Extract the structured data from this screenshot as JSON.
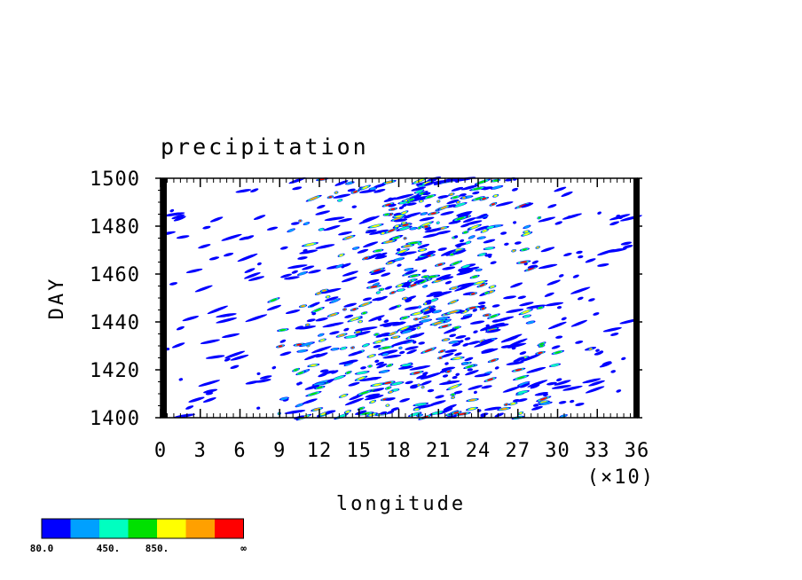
{
  "chart_data": {
    "type": "heatmap",
    "title": "precipitation",
    "xlabel": "longitude",
    "ylabel": "DAY",
    "x_multiplier_label": "(×10)",
    "xlim": [
      0,
      36
    ],
    "ylim": [
      1400,
      1500
    ],
    "x_ticks": [
      "0",
      "3",
      "6",
      "9",
      "12",
      "15",
      "18",
      "21",
      "24",
      "27",
      "30",
      "33",
      "36"
    ],
    "y_ticks": [
      "1400",
      "1420",
      "1440",
      "1460",
      "1480",
      "1500"
    ],
    "grid": false,
    "colorbar": {
      "placement": "bottom-left",
      "colors": [
        "#0000ff",
        "#00a0ff",
        "#00ffc0",
        "#00e000",
        "#ffff00",
        "#ffa000",
        "#ff0000"
      ],
      "labels": [
        "80.0",
        "450.",
        "850.",
        "∞"
      ]
    },
    "description_of_field": "scattered precipitation cells, densest between longitude 120 and 270, streaks tilted eastward with time",
    "active_band": {
      "lon_center": [
        19,
        20
      ],
      "lon_halfwidth": [
        8,
        5
      ],
      "day_range": [
        1400,
        1500
      ]
    }
  }
}
